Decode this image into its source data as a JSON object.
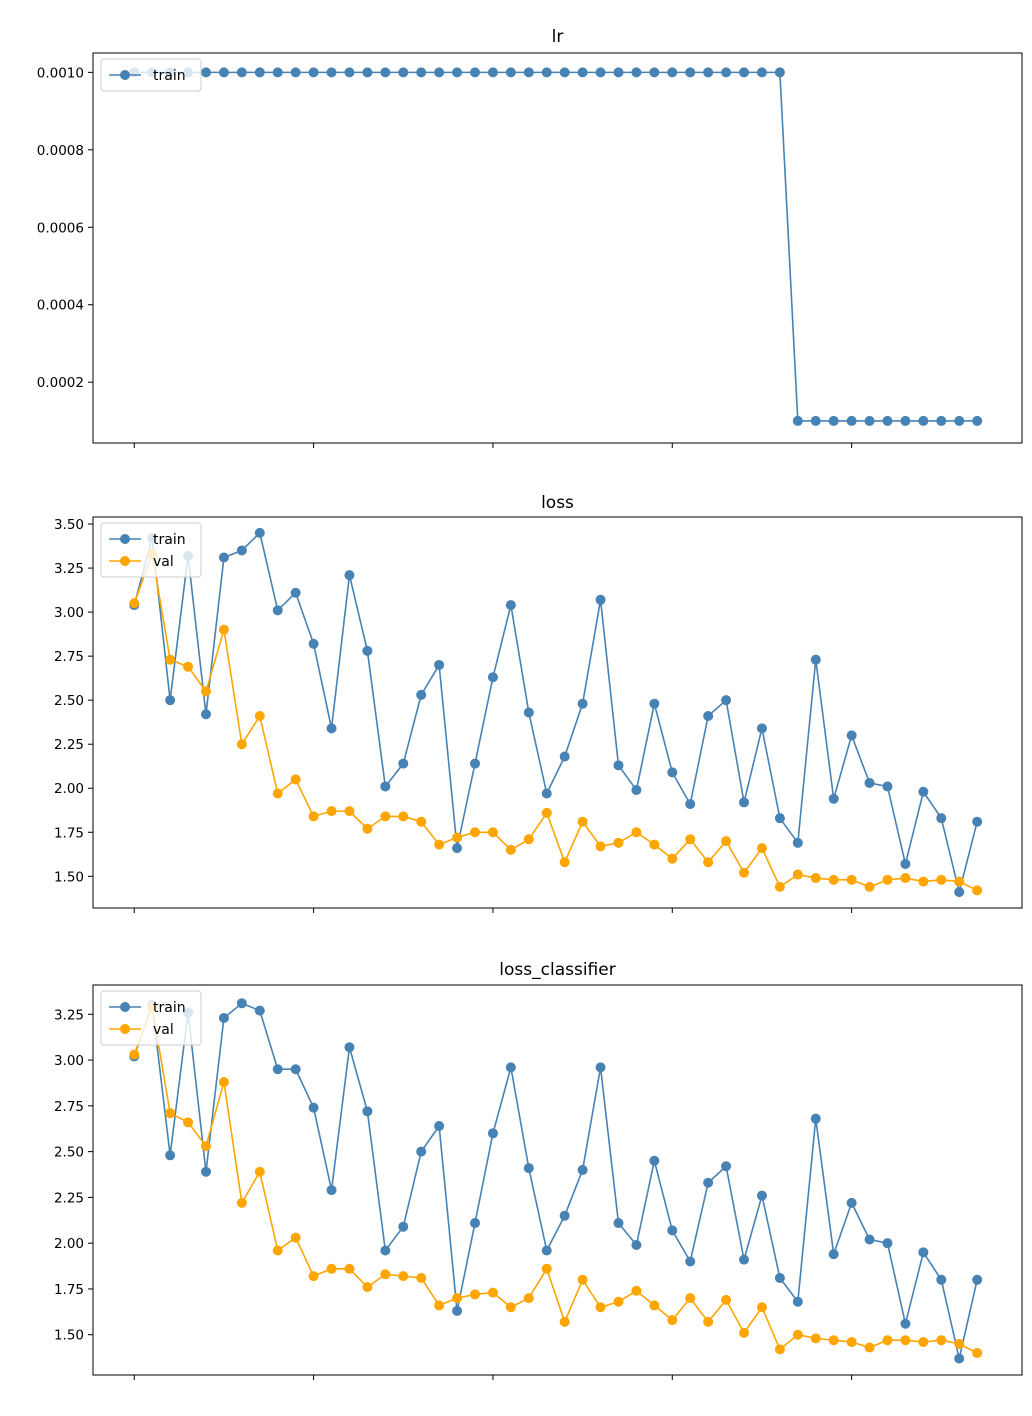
{
  "colors": {
    "train": "#4682b4",
    "val": "#ffa500"
  },
  "chart_data": [
    {
      "type": "line",
      "title": "lr",
      "xlabel": "",
      "ylabel": "",
      "x": [
        0,
        1,
        2,
        3,
        4,
        5,
        6,
        7,
        8,
        9,
        10,
        11,
        12,
        13,
        14,
        15,
        16,
        17,
        18,
        19,
        20,
        21,
        22,
        23,
        24,
        25,
        26,
        27,
        28,
        29,
        30,
        31,
        32,
        33,
        34,
        35,
        36,
        37,
        38,
        39,
        40,
        41,
        42,
        43,
        44,
        45,
        46,
        47
      ],
      "xlim": [
        -2.3,
        49.5
      ],
      "ylim": [
        4.3e-05,
        0.00105
      ],
      "yticks": [
        0.0002,
        0.0004,
        0.0006,
        0.0008,
        0.001
      ],
      "ytick_labels": [
        "0.0002",
        "0.0004",
        "0.0006",
        "0.0008",
        "0.0010"
      ],
      "xticks": [
        0,
        10,
        20,
        30,
        40
      ],
      "xtick_labels": [
        "",
        "",
        "",
        "",
        ""
      ],
      "grid": false,
      "legend": {
        "position": "upper-left",
        "entries": [
          "train"
        ]
      },
      "series": [
        {
          "name": "train",
          "color_key": "train",
          "values": [
            0.001,
            0.001,
            0.001,
            0.001,
            0.001,
            0.001,
            0.001,
            0.001,
            0.001,
            0.001,
            0.001,
            0.001,
            0.001,
            0.001,
            0.001,
            0.001,
            0.001,
            0.001,
            0.001,
            0.001,
            0.001,
            0.001,
            0.001,
            0.001,
            0.001,
            0.001,
            0.001,
            0.001,
            0.001,
            0.001,
            0.001,
            0.001,
            0.001,
            0.001,
            0.001,
            0.001,
            0.001,
            0.0001,
            0.0001,
            0.0001,
            0.0001,
            0.0001,
            0.0001,
            0.0001,
            0.0001,
            0.0001,
            0.0001,
            0.0001
          ]
        }
      ]
    },
    {
      "type": "line",
      "title": "loss",
      "xlabel": "",
      "ylabel": "",
      "x": [
        0,
        1,
        2,
        3,
        4,
        5,
        6,
        7,
        8,
        9,
        10,
        11,
        12,
        13,
        14,
        15,
        16,
        17,
        18,
        19,
        20,
        21,
        22,
        23,
        24,
        25,
        26,
        27,
        28,
        29,
        30,
        31,
        32,
        33,
        34,
        35,
        36,
        37,
        38,
        39,
        40,
        41,
        42,
        43,
        44,
        45,
        46,
        47
      ],
      "xlim": [
        -2.3,
        49.5
      ],
      "ylim": [
        1.32,
        3.54
      ],
      "yticks": [
        1.5,
        1.75,
        2.0,
        2.25,
        2.5,
        2.75,
        3.0,
        3.25,
        3.5
      ],
      "ytick_labels": [
        "1.50",
        "1.75",
        "2.00",
        "2.25",
        "2.50",
        "2.75",
        "3.00",
        "3.25",
        "3.50"
      ],
      "xticks": [
        0,
        10,
        20,
        30,
        40
      ],
      "xtick_labels": [
        "",
        "",
        "",
        "",
        ""
      ],
      "grid": false,
      "legend": {
        "position": "upper-left",
        "entries": [
          "train",
          "val"
        ]
      },
      "series": [
        {
          "name": "train",
          "color_key": "train",
          "values": [
            3.04,
            3.42,
            2.5,
            3.32,
            2.42,
            3.31,
            3.35,
            3.45,
            3.01,
            3.11,
            2.82,
            2.34,
            3.21,
            2.78,
            2.01,
            2.14,
            2.53,
            2.7,
            1.66,
            2.14,
            2.63,
            3.04,
            2.43,
            1.97,
            2.18,
            2.48,
            3.07,
            2.13,
            1.99,
            2.48,
            2.09,
            1.91,
            2.41,
            2.5,
            1.92,
            2.34,
            1.83,
            1.69,
            2.73,
            1.94,
            2.3,
            2.03,
            2.01,
            1.57,
            1.98,
            1.83,
            1.41,
            1.81
          ]
        },
        {
          "name": "val",
          "color_key": "val",
          "values": [
            3.05,
            3.33,
            2.73,
            2.69,
            2.55,
            2.9,
            2.25,
            2.41,
            1.97,
            2.05,
            1.84,
            1.87,
            1.87,
            1.77,
            1.84,
            1.84,
            1.81,
            1.68,
            1.72,
            1.75,
            1.75,
            1.65,
            1.71,
            1.86,
            1.58,
            1.81,
            1.67,
            1.69,
            1.75,
            1.68,
            1.6,
            1.71,
            1.58,
            1.7,
            1.52,
            1.66,
            1.44,
            1.51,
            1.49,
            1.48,
            1.48,
            1.44,
            1.48,
            1.49,
            1.47,
            1.48,
            1.47,
            1.42
          ]
        }
      ]
    },
    {
      "type": "line",
      "title": "loss_classifier",
      "xlabel": "",
      "ylabel": "",
      "x": [
        0,
        1,
        2,
        3,
        4,
        5,
        6,
        7,
        8,
        9,
        10,
        11,
        12,
        13,
        14,
        15,
        16,
        17,
        18,
        19,
        20,
        21,
        22,
        23,
        24,
        25,
        26,
        27,
        28,
        29,
        30,
        31,
        32,
        33,
        34,
        35,
        36,
        37,
        38,
        39,
        40,
        41,
        42,
        43,
        44,
        45,
        46,
        47
      ],
      "xlim": [
        -2.3,
        49.5
      ],
      "ylim": [
        1.28,
        3.41
      ],
      "yticks": [
        1.5,
        1.75,
        2.0,
        2.25,
        2.5,
        2.75,
        3.0,
        3.25
      ],
      "ytick_labels": [
        "1.50",
        "1.75",
        "2.00",
        "2.25",
        "2.50",
        "2.75",
        "3.00",
        "3.25"
      ],
      "xticks": [
        0,
        10,
        20,
        30,
        40
      ],
      "xtick_labels": [
        "",
        "",
        "",
        "",
        ""
      ],
      "grid": false,
      "legend": {
        "position": "upper-left",
        "entries": [
          "train",
          "val"
        ]
      },
      "series": [
        {
          "name": "train",
          "color_key": "train",
          "values": [
            3.02,
            3.3,
            2.48,
            3.26,
            2.39,
            3.23,
            3.31,
            3.27,
            2.95,
            2.95,
            2.74,
            2.29,
            3.07,
            2.72,
            1.96,
            2.09,
            2.5,
            2.64,
            1.63,
            2.11,
            2.6,
            2.96,
            2.41,
            1.96,
            2.15,
            2.4,
            2.96,
            2.11,
            1.99,
            2.45,
            2.07,
            1.9,
            2.33,
            2.42,
            1.91,
            2.26,
            1.81,
            1.68,
            2.68,
            1.94,
            2.22,
            2.02,
            2.0,
            1.56,
            1.95,
            1.8,
            1.37,
            1.8
          ]
        },
        {
          "name": "val",
          "color_key": "val",
          "values": [
            3.03,
            3.29,
            2.71,
            2.66,
            2.53,
            2.88,
            2.22,
            2.39,
            1.96,
            2.03,
            1.82,
            1.86,
            1.86,
            1.76,
            1.83,
            1.82,
            1.81,
            1.66,
            1.7,
            1.72,
            1.73,
            1.65,
            1.7,
            1.86,
            1.57,
            1.8,
            1.65,
            1.68,
            1.74,
            1.66,
            1.58,
            1.7,
            1.57,
            1.69,
            1.51,
            1.65,
            1.42,
            1.5,
            1.48,
            1.47,
            1.46,
            1.43,
            1.47,
            1.47,
            1.46,
            1.47,
            1.45,
            1.4
          ]
        }
      ]
    }
  ]
}
